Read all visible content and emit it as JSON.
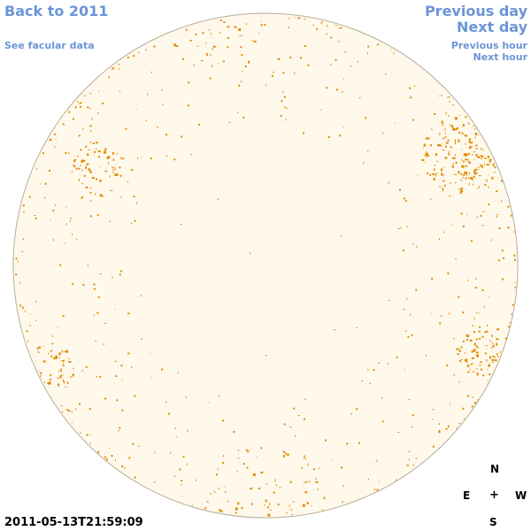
{
  "nav": {
    "back_label": "Back to 2011",
    "facular_label": "See facular data",
    "prev_day_label": "Previous day",
    "next_day_label": "Next day",
    "prev_hour_label": "Previous hour",
    "next_hour_label": "Next hour"
  },
  "compass": {
    "north": "N",
    "east": "E",
    "center": "+",
    "west": "W",
    "south": "S"
  },
  "timestamp": "2011-05-13T21:59:09",
  "colors": {
    "link": "#6b95d8",
    "disk_fill": "#fff9ec",
    "disk_stroke": "#b8ad98",
    "facula": "#e08a00"
  }
}
